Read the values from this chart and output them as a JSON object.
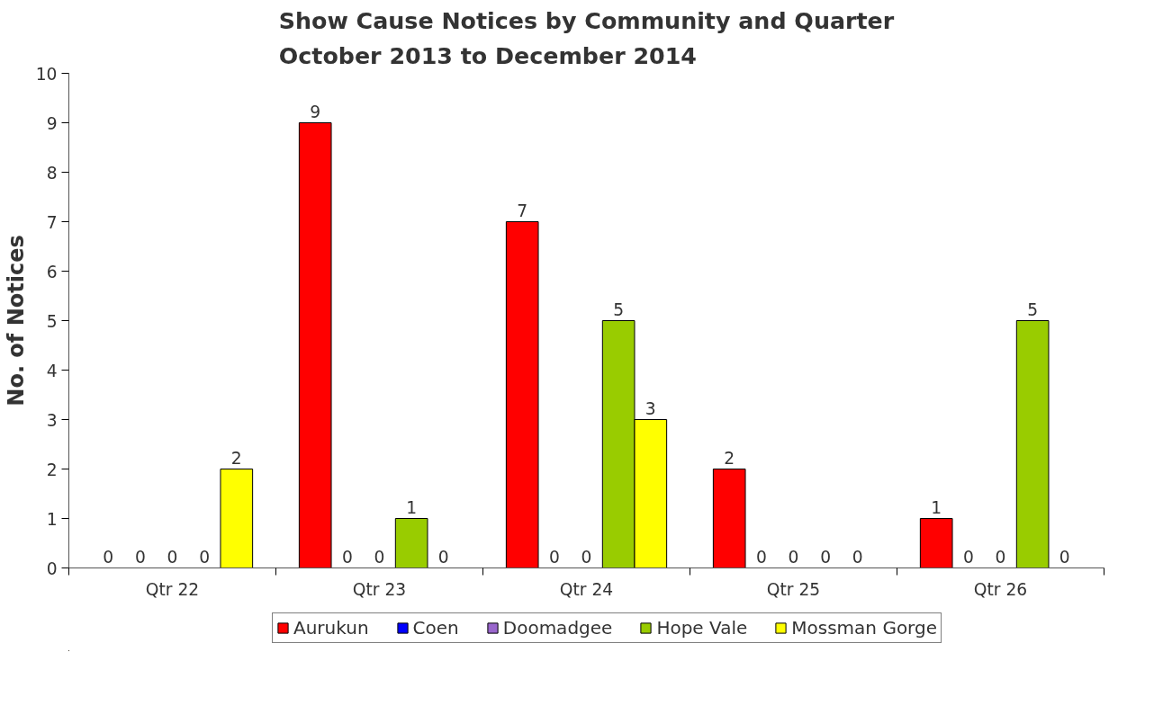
{
  "chart_data": {
    "type": "bar",
    "title": "Show Cause Notices by Community and Quarter\nOctober 2013 to December 2014",
    "ylabel": "No. of Notices",
    "categories": [
      "Qtr 22",
      "Qtr 23",
      "Qtr 24",
      "Qtr 25",
      "Qtr 26"
    ],
    "series": [
      {
        "name": "Aurukun",
        "color": "#ff0000",
        "values": [
          0,
          9,
          7,
          2,
          1
        ]
      },
      {
        "name": "Coen",
        "color": "#0000ff",
        "values": [
          0,
          0,
          0,
          0,
          0
        ]
      },
      {
        "name": "Doomadgee",
        "color": "#9966cc",
        "values": [
          0,
          0,
          0,
          0,
          0
        ]
      },
      {
        "name": "Hope Vale",
        "color": "#99cc00",
        "values": [
          0,
          1,
          5,
          0,
          5
        ]
      },
      {
        "name": "Mossman Gorge",
        "color": "#ffff00",
        "values": [
          2,
          0,
          3,
          0,
          0
        ]
      }
    ],
    "ylim": [
      0,
      10
    ],
    "yticks": [
      0,
      1,
      2,
      3,
      4,
      5,
      6,
      7,
      8,
      9,
      10
    ],
    "grid": false,
    "legend": "bottom",
    "data_labels": true
  }
}
